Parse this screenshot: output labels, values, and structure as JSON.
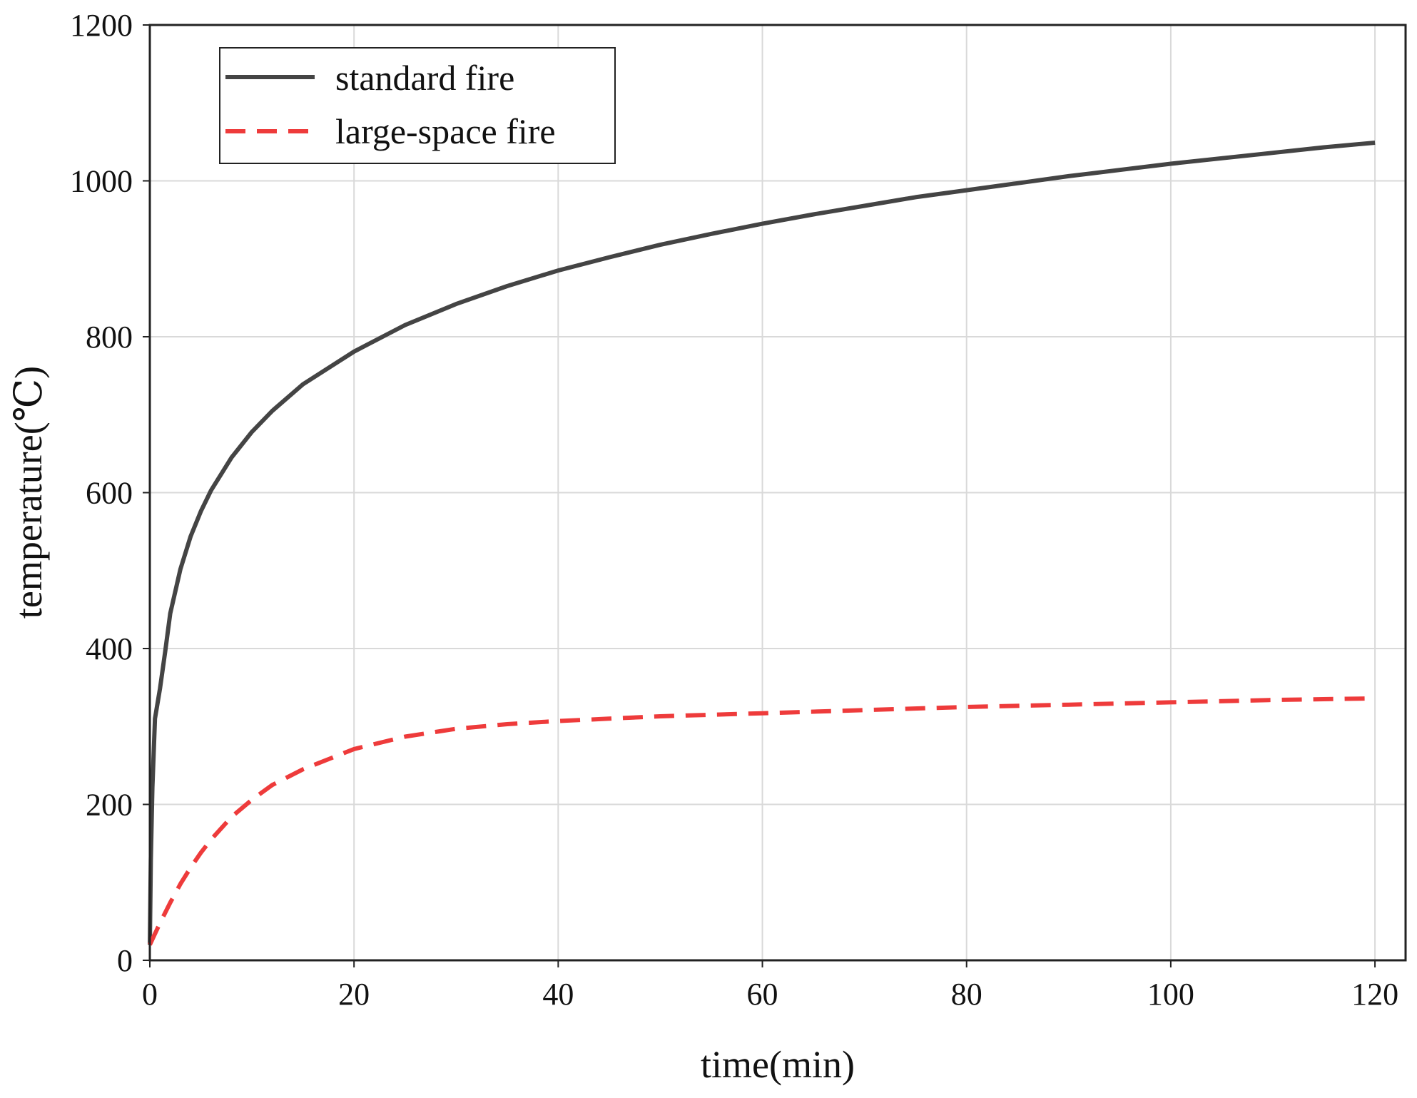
{
  "chart_data": {
    "type": "line",
    "title": "",
    "xlabel": "time(min)",
    "ylabel": "temperature(℃)",
    "xlim": [
      0,
      123
    ],
    "ylim": [
      0,
      1200
    ],
    "xticks": [
      0,
      20,
      40,
      60,
      80,
      100,
      120
    ],
    "yticks": [
      0,
      200,
      400,
      600,
      800,
      1000,
      1200
    ],
    "x_tick_labels": [
      "0",
      "20",
      "40",
      "60",
      "80",
      "100",
      "120"
    ],
    "y_tick_labels": [
      "0",
      "200",
      "400",
      "600",
      "800",
      "1000",
      "1200"
    ],
    "grid": true,
    "legend_position": "top-left",
    "series": [
      {
        "name": "standard fire",
        "color": "#444444",
        "style": "solid",
        "x": [
          0,
          0.1,
          0.25,
          0.5,
          1,
          1.5,
          2,
          3,
          4,
          5,
          6,
          8,
          10,
          12,
          15,
          20,
          25,
          30,
          35,
          40,
          45,
          50,
          55,
          60,
          65,
          70,
          75,
          80,
          85,
          90,
          95,
          100,
          105,
          110,
          115,
          120
        ],
        "y": [
          20,
          129,
          222,
          310,
          349,
          396,
          445,
          502,
          544,
          576,
          603,
          645,
          678,
          705,
          739,
          781,
          815,
          842,
          865,
          885,
          902,
          918,
          932,
          945,
          957,
          968,
          979,
          988,
          997,
          1006,
          1014,
          1022,
          1029,
          1036,
          1043,
          1049
        ]
      },
      {
        "name": "large-space fire",
        "color": "#ee3b3b",
        "style": "dashed",
        "x": [
          0,
          1,
          2,
          3,
          4,
          5,
          6,
          8,
          10,
          12,
          15,
          20,
          25,
          30,
          35,
          40,
          45,
          50,
          60,
          70,
          80,
          90,
          100,
          110,
          120
        ],
        "y": [
          20,
          48,
          74,
          98,
          119,
          138,
          155,
          184,
          206,
          225,
          245,
          271,
          287,
          297,
          303,
          307,
          310,
          313,
          317,
          321,
          325,
          328,
          331,
          334,
          336
        ]
      }
    ]
  }
}
